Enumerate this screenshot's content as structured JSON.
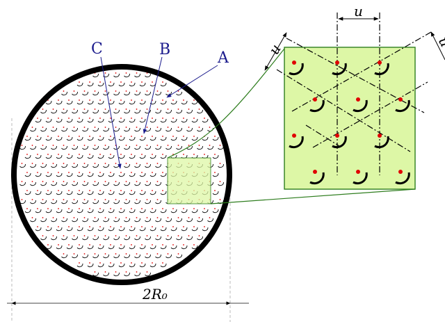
{
  "labels": {
    "a": "A",
    "b": "B",
    "c": "C",
    "diameter": "2R₀",
    "spacing_top": "u",
    "spacing_left": "u",
    "spacing_right": "u"
  },
  "colors": {
    "circle_stroke": "#000000",
    "arrow_blue": "#1a1a8c",
    "inset_fill": "#ddf7a6",
    "inset_stroke": "#2e7d1e",
    "dot_red": "#e00000",
    "arc_black": "#000000",
    "dimension_line": "#555555"
  },
  "icons": {
    "mark_symbol": "red-dot-with-black-arc"
  }
}
